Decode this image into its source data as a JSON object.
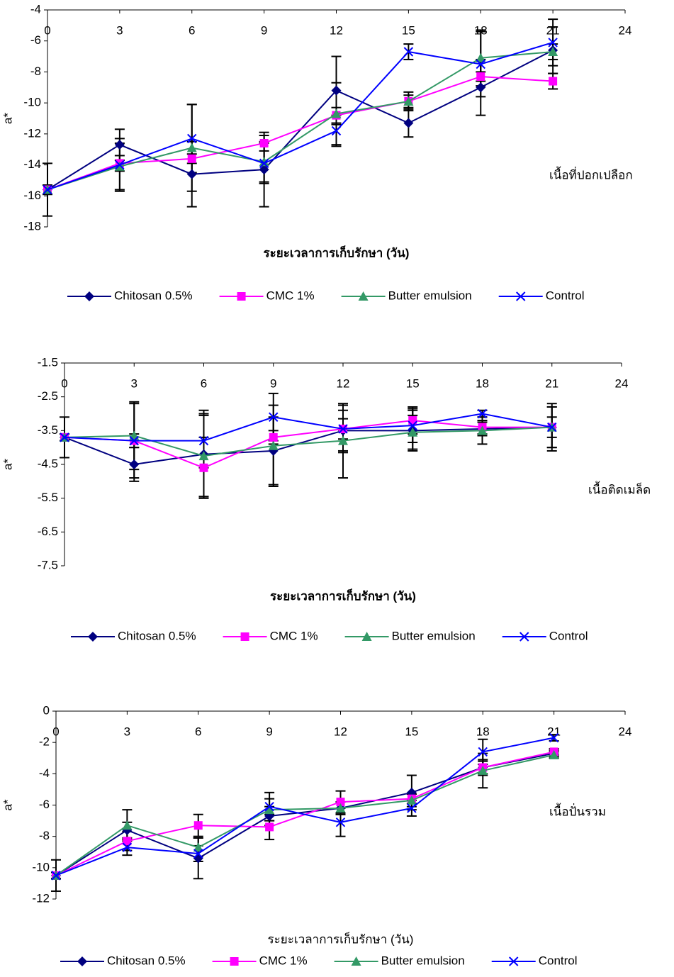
{
  "chart_data": [
    {
      "type": "line",
      "x_label": "ระยะเวลาการเก็บรักษา (วัน)",
      "y_label": "a*",
      "annotation": "เนื้อที่ปอกเปลือก",
      "x": [
        0,
        3,
        6,
        9,
        12,
        15,
        18,
        21
      ],
      "xlim": [
        0,
        24
      ],
      "xticks": [
        0,
        3,
        6,
        9,
        12,
        15,
        18,
        21,
        24
      ],
      "ylim": [
        -18,
        -4
      ],
      "yticks": [
        -18,
        -16,
        -14,
        -12,
        -10,
        -8,
        -6,
        -4
      ],
      "legend": "bottom",
      "series": [
        {
          "name": "Chitosan 0.5%",
          "color": "#000080",
          "marker": "diamond",
          "values": [
            -15.6,
            -12.7,
            -14.6,
            -14.3,
            -9.2,
            -11.3,
            -9.0,
            -6.6
          ],
          "errors": [
            1.7,
            1.0,
            2.1,
            2.4,
            2.2,
            0.9,
            1.8,
            1.5
          ]
        },
        {
          "name": "CMC 1%",
          "color": "#ff00ff",
          "marker": "square",
          "values": [
            -15.6,
            -13.9,
            -13.6,
            -12.6,
            -10.8,
            -9.9,
            -8.3,
            -8.6
          ],
          "errors": [
            0.3,
            0.5,
            0.3,
            0.5,
            0.5,
            0.4,
            0.3,
            0.5
          ]
        },
        {
          "name": "Butter emulsion",
          "color": "#339966",
          "marker": "triangle",
          "values": [
            -15.6,
            -14.1,
            -12.9,
            -13.8,
            -10.7,
            -9.9,
            -7.1,
            -6.7
          ],
          "errors": [
            0.3,
            1.5,
            2.8,
            1.3,
            2.0,
            0.6,
            1.8,
            0.5
          ]
        },
        {
          "name": "Control",
          "color": "#0000ff",
          "marker": "x",
          "values": [
            -15.6,
            -14.0,
            -12.3,
            -13.9,
            -11.8,
            -6.7,
            -7.5,
            -6.1
          ],
          "errors": [
            0.3,
            1.7,
            2.2,
            1.3,
            1.0,
            0.5,
            2.1,
            1.5
          ]
        }
      ]
    },
    {
      "type": "line",
      "x_label": "ระยะเวลาการเก็บรักษา (วัน)",
      "y_label": "a*",
      "annotation": "เนื้อติดเมล็ด",
      "x": [
        0,
        3,
        6,
        9,
        12,
        15,
        18,
        21
      ],
      "xlim": [
        0,
        24
      ],
      "xticks": [
        0,
        3,
        6,
        9,
        12,
        15,
        18,
        21,
        24
      ],
      "ylim": [
        -7.5,
        -1.5
      ],
      "yticks": [
        -7.5,
        -6.5,
        -5.5,
        -4.5,
        -3.5,
        -2.5,
        -1.5
      ],
      "legend": "bottom",
      "series": [
        {
          "name": "Chitosan 0.5%",
          "color": "#000080",
          "marker": "diamond",
          "values": [
            -3.7,
            -4.5,
            -4.2,
            -4.1,
            -3.5,
            -3.5,
            -3.45,
            -3.4
          ],
          "errors": [
            0.6,
            0.5,
            1.3,
            1.0,
            0.6,
            0.6,
            0.2,
            0.6
          ]
        },
        {
          "name": "CMC 1%",
          "color": "#ff00ff",
          "marker": "square",
          "values": [
            -3.7,
            -3.8,
            -4.6,
            -3.7,
            -3.45,
            -3.2,
            -3.4,
            -3.4
          ],
          "errors": [
            0.1,
            0.2,
            0.9,
            0.2,
            0.3,
            0.4,
            0.2,
            0.3
          ]
        },
        {
          "name": "Butter emulsion",
          "color": "#339966",
          "marker": "triangle",
          "values": [
            -3.7,
            -3.65,
            -4.25,
            -3.95,
            -3.8,
            -3.55,
            -3.5,
            -3.4
          ],
          "errors": [
            0.1,
            1.0,
            1.2,
            1.2,
            1.1,
            0.5,
            0.4,
            0.6
          ]
        },
        {
          "name": "Control",
          "color": "#0000ff",
          "marker": "x",
          "values": [
            -3.7,
            -3.8,
            -3.8,
            -3.1,
            -3.45,
            -3.35,
            -3.0,
            -3.4
          ],
          "errors": [
            0.1,
            1.1,
            0.8,
            0.7,
            0.7,
            0.5,
            0.1,
            0.7
          ]
        }
      ]
    },
    {
      "type": "line",
      "x_label": "ระยะเวลาการเก็บรักษา (วัน)",
      "y_label": "a*",
      "annotation": "เนื้อปั่นรวม",
      "x": [
        0,
        3,
        6,
        9,
        12,
        15,
        18,
        21
      ],
      "xlim": [
        0,
        24
      ],
      "xticks": [
        0,
        3,
        6,
        9,
        12,
        15,
        18,
        21,
        24
      ],
      "ylim": [
        -12,
        0
      ],
      "yticks": [
        -12,
        -10,
        -8,
        -6,
        -4,
        -2,
        0
      ],
      "legend": "bottom",
      "series": [
        {
          "name": "Chitosan 0.5%",
          "color": "#000080",
          "marker": "diamond",
          "values": [
            -10.5,
            -7.6,
            -9.4,
            -6.7,
            -6.2,
            -5.2,
            -3.6,
            -2.7
          ],
          "errors": [
            1.0,
            0.5,
            1.3,
            0.6,
            0.4,
            1.1,
            0.5,
            0.2
          ]
        },
        {
          "name": "CMC 1%",
          "color": "#ff00ff",
          "marker": "square",
          "values": [
            -10.5,
            -8.3,
            -7.3,
            -7.4,
            -5.8,
            -5.6,
            -3.6,
            -2.6
          ],
          "errors": [
            0.2,
            0.6,
            0.7,
            0.8,
            0.7,
            0.3,
            0.4,
            0.2
          ]
        },
        {
          "name": "Butter emulsion",
          "color": "#339966",
          "marker": "triangle",
          "values": [
            -10.5,
            -7.3,
            -8.7,
            -6.3,
            -6.2,
            -5.7,
            -3.8,
            -2.8
          ],
          "errors": [
            0.2,
            1.0,
            0.6,
            0.7,
            0.4,
            0.4,
            1.1,
            0.2
          ]
        },
        {
          "name": "Control",
          "color": "#0000ff",
          "marker": "x",
          "values": [
            -10.5,
            -8.7,
            -9.1,
            -6.1,
            -7.1,
            -6.2,
            -2.6,
            -1.7
          ],
          "errors": [
            0.2,
            0.5,
            0.5,
            0.9,
            0.9,
            0.5,
            0.8,
            0.2
          ]
        }
      ]
    }
  ]
}
